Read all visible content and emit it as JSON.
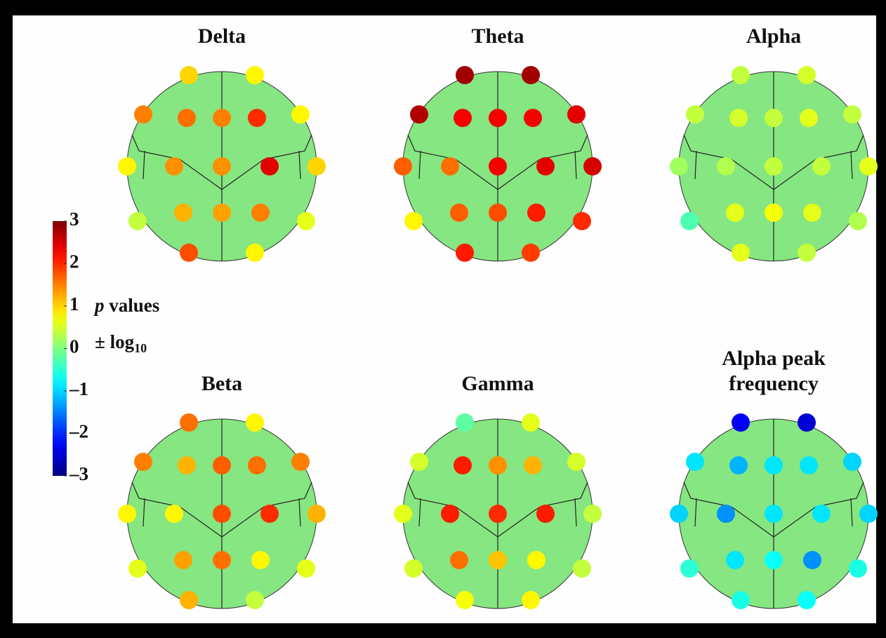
{
  "chart_data": {
    "type": "topoplot",
    "colormap": "jet",
    "clim": [
      -3,
      3
    ],
    "colorbar_ticks": [
      3,
      2,
      1,
      0,
      {
        "value": -1,
        "label": "–1"
      },
      {
        "value": -2,
        "label": "–2"
      },
      {
        "value": -3,
        "label": "–3"
      }
    ],
    "colorbar_label": {
      "variable": "p",
      "text": "values",
      "scale": "± log",
      "scale_subscript": "10"
    },
    "head_color": "#86e681",
    "maps": [
      {
        "title_lines": [
          "Delta"
        ],
        "values": [
          1.0,
          0.8,
          1.5,
          1.6,
          1.5,
          2.0,
          0.8,
          0.8,
          1.4,
          1.4,
          2.4,
          1.0,
          0.4,
          1.2,
          1.3,
          1.5,
          0.6,
          1.8,
          0.8
        ]
      },
      {
        "title_lines": [
          "Theta"
        ],
        "values": [
          2.8,
          2.8,
          2.7,
          2.3,
          2.3,
          2.3,
          2.4,
          1.7,
          1.6,
          2.3,
          2.4,
          2.5,
          0.8,
          1.7,
          1.8,
          2.1,
          2.0,
          2.1,
          1.9
        ]
      },
      {
        "title_lines": [
          "Alpha"
        ],
        "values": [
          0.4,
          0.5,
          0.4,
          0.5,
          0.4,
          0.6,
          0.4,
          0.2,
          0.3,
          0.4,
          0.4,
          0.6,
          -0.3,
          0.6,
          0.7,
          0.6,
          0.3,
          0.6,
          0.4
        ]
      },
      {
        "title_lines": [
          "Beta"
        ],
        "values": [
          1.6,
          0.8,
          1.5,
          1.2,
          1.7,
          1.6,
          1.5,
          0.8,
          0.8,
          1.8,
          2.0,
          1.2,
          0.6,
          1.3,
          1.6,
          0.8,
          0.6,
          1.2,
          0.4
        ]
      },
      {
        "title_lines": [
          "Gamma"
        ],
        "values": [
          -0.2,
          0.6,
          0.5,
          2.1,
          1.4,
          1.2,
          0.5,
          0.6,
          2.1,
          2.0,
          2.1,
          0.4,
          0.5,
          1.6,
          1.1,
          0.8,
          0.4,
          0.7,
          0.8
        ]
      },
      {
        "title_lines": [
          "Alpha peak",
          "frequency"
        ],
        "values": [
          -2.3,
          -2.5,
          -0.9,
          -1.2,
          -0.9,
          -0.9,
          -1.0,
          -1.0,
          -1.4,
          -0.9,
          -0.9,
          -1.0,
          -0.5,
          -0.9,
          -0.7,
          -1.4,
          -0.6,
          -0.6,
          -0.7
        ]
      }
    ]
  }
}
